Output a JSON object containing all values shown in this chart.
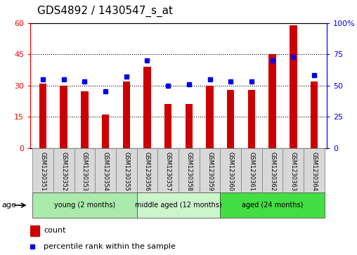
{
  "title": "GDS4892 / 1430547_s_at",
  "samples": [
    "GSM1230351",
    "GSM1230352",
    "GSM1230353",
    "GSM1230354",
    "GSM1230355",
    "GSM1230356",
    "GSM1230357",
    "GSM1230358",
    "GSM1230359",
    "GSM1230360",
    "GSM1230361",
    "GSM1230362",
    "GSM1230363",
    "GSM1230364"
  ],
  "counts": [
    31,
    30,
    27,
    16,
    32,
    39,
    21,
    21,
    30,
    28,
    28,
    45,
    59,
    32
  ],
  "percentiles": [
    55,
    55,
    53,
    45,
    57,
    70,
    50,
    51,
    55,
    53,
    53,
    70,
    73,
    58
  ],
  "ylim_left": [
    0,
    60
  ],
  "ylim_right": [
    0,
    100
  ],
  "yticks_left": [
    0,
    15,
    30,
    45,
    60
  ],
  "yticks_right": [
    0,
    25,
    50,
    75,
    100
  ],
  "ytick_labels_right": [
    "0",
    "25",
    "50",
    "75",
    "100%"
  ],
  "bar_color": "#cc0000",
  "dot_color": "#0000ee",
  "groups": [
    {
      "label": "young (2 months)",
      "start": 0,
      "end": 5,
      "color": "#aaeaaa"
    },
    {
      "label": "middle aged (12 months)",
      "start": 5,
      "end": 9,
      "color": "#ccf5cc"
    },
    {
      "label": "aged (24 months)",
      "start": 9,
      "end": 14,
      "color": "#44dd44"
    }
  ],
  "age_label": "age",
  "legend_count": "count",
  "legend_percentile": "percentile rank within the sample",
  "background_color": "#ffffff",
  "sample_box_color": "#d8d8d8",
  "title_fontsize": 11,
  "tick_fontsize": 8,
  "bar_width": 0.35
}
